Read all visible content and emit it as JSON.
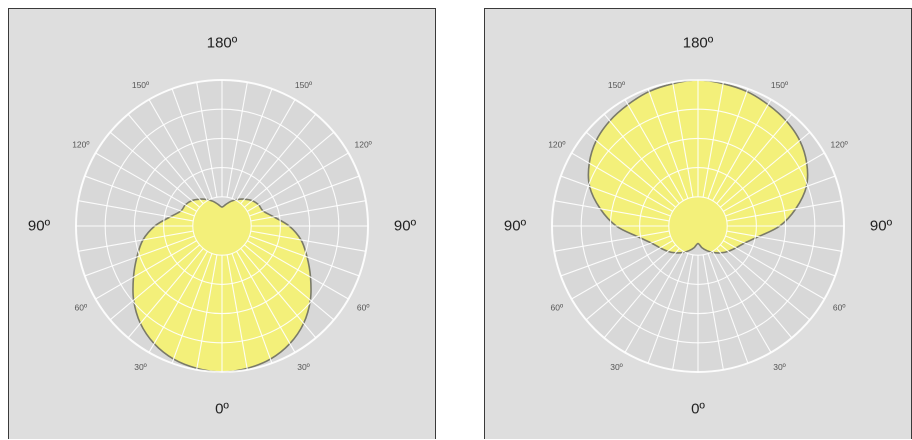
{
  "chart_data": [
    {
      "type": "polar",
      "angle_labels": {
        "major": [
          {
            "angle": 180,
            "text": "180º"
          },
          {
            "angle": 90,
            "text": "90º"
          },
          {
            "angle": -90,
            "text": "90º"
          },
          {
            "angle": 0,
            "text": "0º"
          }
        ],
        "minor": [
          {
            "angle": 150,
            "text": "150º"
          },
          {
            "angle": -150,
            "text": "150º"
          },
          {
            "angle": 120,
            "text": "120º"
          },
          {
            "angle": -120,
            "text": "120º"
          },
          {
            "angle": 60,
            "text": "60º"
          },
          {
            "angle": -60,
            "text": "60º"
          },
          {
            "angle": 30,
            "text": "30º"
          },
          {
            "angle": -30,
            "text": "30º"
          }
        ]
      },
      "grid": true,
      "rlim": [
        0,
        1
      ],
      "series": [
        {
          "color": "#f3f07a",
          "angles": [
            0,
            10,
            20,
            30,
            40,
            50,
            60,
            70,
            80,
            90,
            100,
            110,
            120,
            130,
            140,
            150,
            160,
            170,
            180
          ],
          "r": [
            1.0,
            0.99,
            0.97,
            0.93,
            0.87,
            0.79,
            0.7,
            0.62,
            0.55,
            0.46,
            0.36,
            0.3,
            0.29,
            0.27,
            0.24,
            0.21,
            0.18,
            0.15,
            0.13
          ]
        }
      ]
    },
    {
      "type": "polar",
      "angle_labels": {
        "major": [
          {
            "angle": 180,
            "text": "180º"
          },
          {
            "angle": 90,
            "text": "90º"
          },
          {
            "angle": -90,
            "text": "90º"
          },
          {
            "angle": 0,
            "text": "0º"
          }
        ],
        "minor": [
          {
            "angle": 150,
            "text": "150º"
          },
          {
            "angle": -150,
            "text": "150º"
          },
          {
            "angle": 120,
            "text": "120º"
          },
          {
            "angle": -120,
            "text": "120º"
          },
          {
            "angle": 60,
            "text": "60º"
          },
          {
            "angle": -60,
            "text": "60º"
          },
          {
            "angle": 30,
            "text": "30º"
          },
          {
            "angle": -30,
            "text": "30º"
          }
        ]
      },
      "grid": true,
      "rlim": [
        0,
        1
      ],
      "series": [
        {
          "color": "#f3f07a",
          "angles": [
            0,
            10,
            20,
            30,
            40,
            50,
            60,
            70,
            80,
            90,
            100,
            110,
            120,
            130,
            140,
            150,
            160,
            170,
            180
          ],
          "r": [
            0.12,
            0.15,
            0.18,
            0.21,
            0.24,
            0.27,
            0.3,
            0.34,
            0.42,
            0.56,
            0.68,
            0.79,
            0.86,
            0.91,
            0.94,
            0.96,
            0.98,
            0.99,
            1.0
          ]
        }
      ]
    }
  ]
}
